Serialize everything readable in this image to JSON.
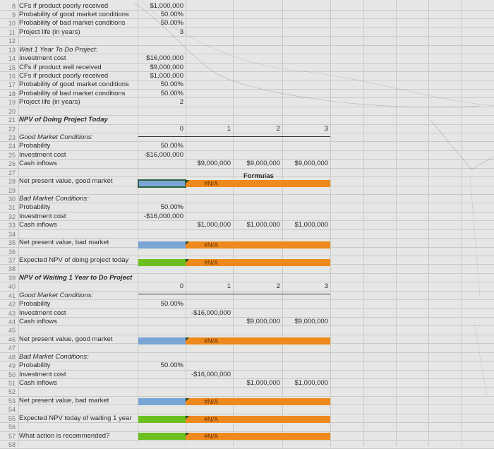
{
  "sheet": {
    "rows": [
      {
        "num": "8",
        "a": "CFs if product poorly received",
        "b": "$1,000,000"
      },
      {
        "num": "9",
        "a": "Probability of good market conditions",
        "b": "50.00%"
      },
      {
        "num": "10",
        "a": "Probability of bad market conditions",
        "b": "50.00%"
      },
      {
        "num": "11",
        "a": "Project life (in years)",
        "b": "3"
      },
      {
        "num": "12"
      },
      {
        "num": "13",
        "a": "Wait 1 Year To Do Project:",
        "style": "italic"
      },
      {
        "num": "14",
        "a": "Investment cost",
        "b": "$16,000,000"
      },
      {
        "num": "15",
        "a": "CFs if product well received",
        "b": "$9,000,000"
      },
      {
        "num": "16",
        "a": "CFs if product poorly received",
        "b": "$1,000,000"
      },
      {
        "num": "17",
        "a": "Probability of good market conditions",
        "b": "50.00%"
      },
      {
        "num": "18",
        "a": "Probability of bad market conditions",
        "b": "50.00%"
      },
      {
        "num": "19",
        "a": "Project life (in years)",
        "b": "2"
      },
      {
        "num": "20"
      },
      {
        "num": "21",
        "a": "NPV of Doing Project Today",
        "style": "bold-italic"
      },
      {
        "num": "22",
        "b": "0",
        "c": "1",
        "d": "2",
        "e": "3"
      },
      {
        "num": "23",
        "a": "Good Market Conditions:",
        "style": "italic"
      },
      {
        "num": "24",
        "a": "Probability",
        "b": "50.00%"
      },
      {
        "num": "25",
        "a": "Investment cost",
        "b": "-$16,000,000"
      },
      {
        "num": "26",
        "a": "Cash inflows",
        "c": "$9,000,000",
        "d": "$9,000,000",
        "e": "$9,000,000"
      },
      {
        "num": "27"
      },
      {
        "num": "28",
        "a": "Net present value, good market"
      },
      {
        "num": "29"
      },
      {
        "num": "30",
        "a": "Bad Market Conditions:",
        "style": "italic"
      },
      {
        "num": "31",
        "a": "Probability",
        "b": "50.00%"
      },
      {
        "num": "32",
        "a": "Investment cost",
        "b": "-$16,000,000"
      },
      {
        "num": "33",
        "a": "Cash inflows",
        "c": "$1,000,000",
        "d": "$1,000,000",
        "e": "$1,000,000"
      },
      {
        "num": "34"
      },
      {
        "num": "35",
        "a": "Net present value, bad market"
      },
      {
        "num": "36"
      },
      {
        "num": "37",
        "a": "Expected NPV of doing project today"
      },
      {
        "num": "38"
      },
      {
        "num": "39",
        "a": "NPV of Waiting 1 Year to Do Project",
        "style": "bold-italic"
      },
      {
        "num": "40",
        "b": "0",
        "c": "1",
        "d": "2",
        "e": "3"
      },
      {
        "num": "41",
        "a": "Good Market Conditions:",
        "style": "italic"
      },
      {
        "num": "42",
        "a": "Probability",
        "b": "50.00%"
      },
      {
        "num": "43",
        "a": "Investment cost",
        "c": "-$16,000,000"
      },
      {
        "num": "44",
        "a": "Cash inflows",
        "d": "$9,000,000",
        "e": "$9,000,000"
      },
      {
        "num": "45"
      },
      {
        "num": "46",
        "a": "Net present value, good market"
      },
      {
        "num": "47"
      },
      {
        "num": "48",
        "a": "Bad Market Conditions:",
        "style": "italic"
      },
      {
        "num": "49",
        "a": "Probability",
        "b": "50.00%"
      },
      {
        "num": "50",
        "a": "Investment cost",
        "c": "-$16,000,000"
      },
      {
        "num": "51",
        "a": "Cash inflows",
        "d": "$1,000,000",
        "e": "$1,000,000"
      },
      {
        "num": "52"
      },
      {
        "num": "53",
        "a": "Net present value, bad market"
      },
      {
        "num": "54"
      },
      {
        "num": "55",
        "a": "Expected NPV today of waiting 1 year"
      },
      {
        "num": "56"
      },
      {
        "num": "57",
        "a": "What action is recommended?"
      },
      {
        "num": "58"
      }
    ],
    "formulas_label": "Formulas",
    "error_value": "#N/A",
    "colors": {
      "input_blue": "#79a6d6",
      "input_green": "#6bbf1f",
      "formula_orange": "#ee8a1d",
      "grid": "#c9cac7",
      "background": "#e6e7e5"
    }
  }
}
